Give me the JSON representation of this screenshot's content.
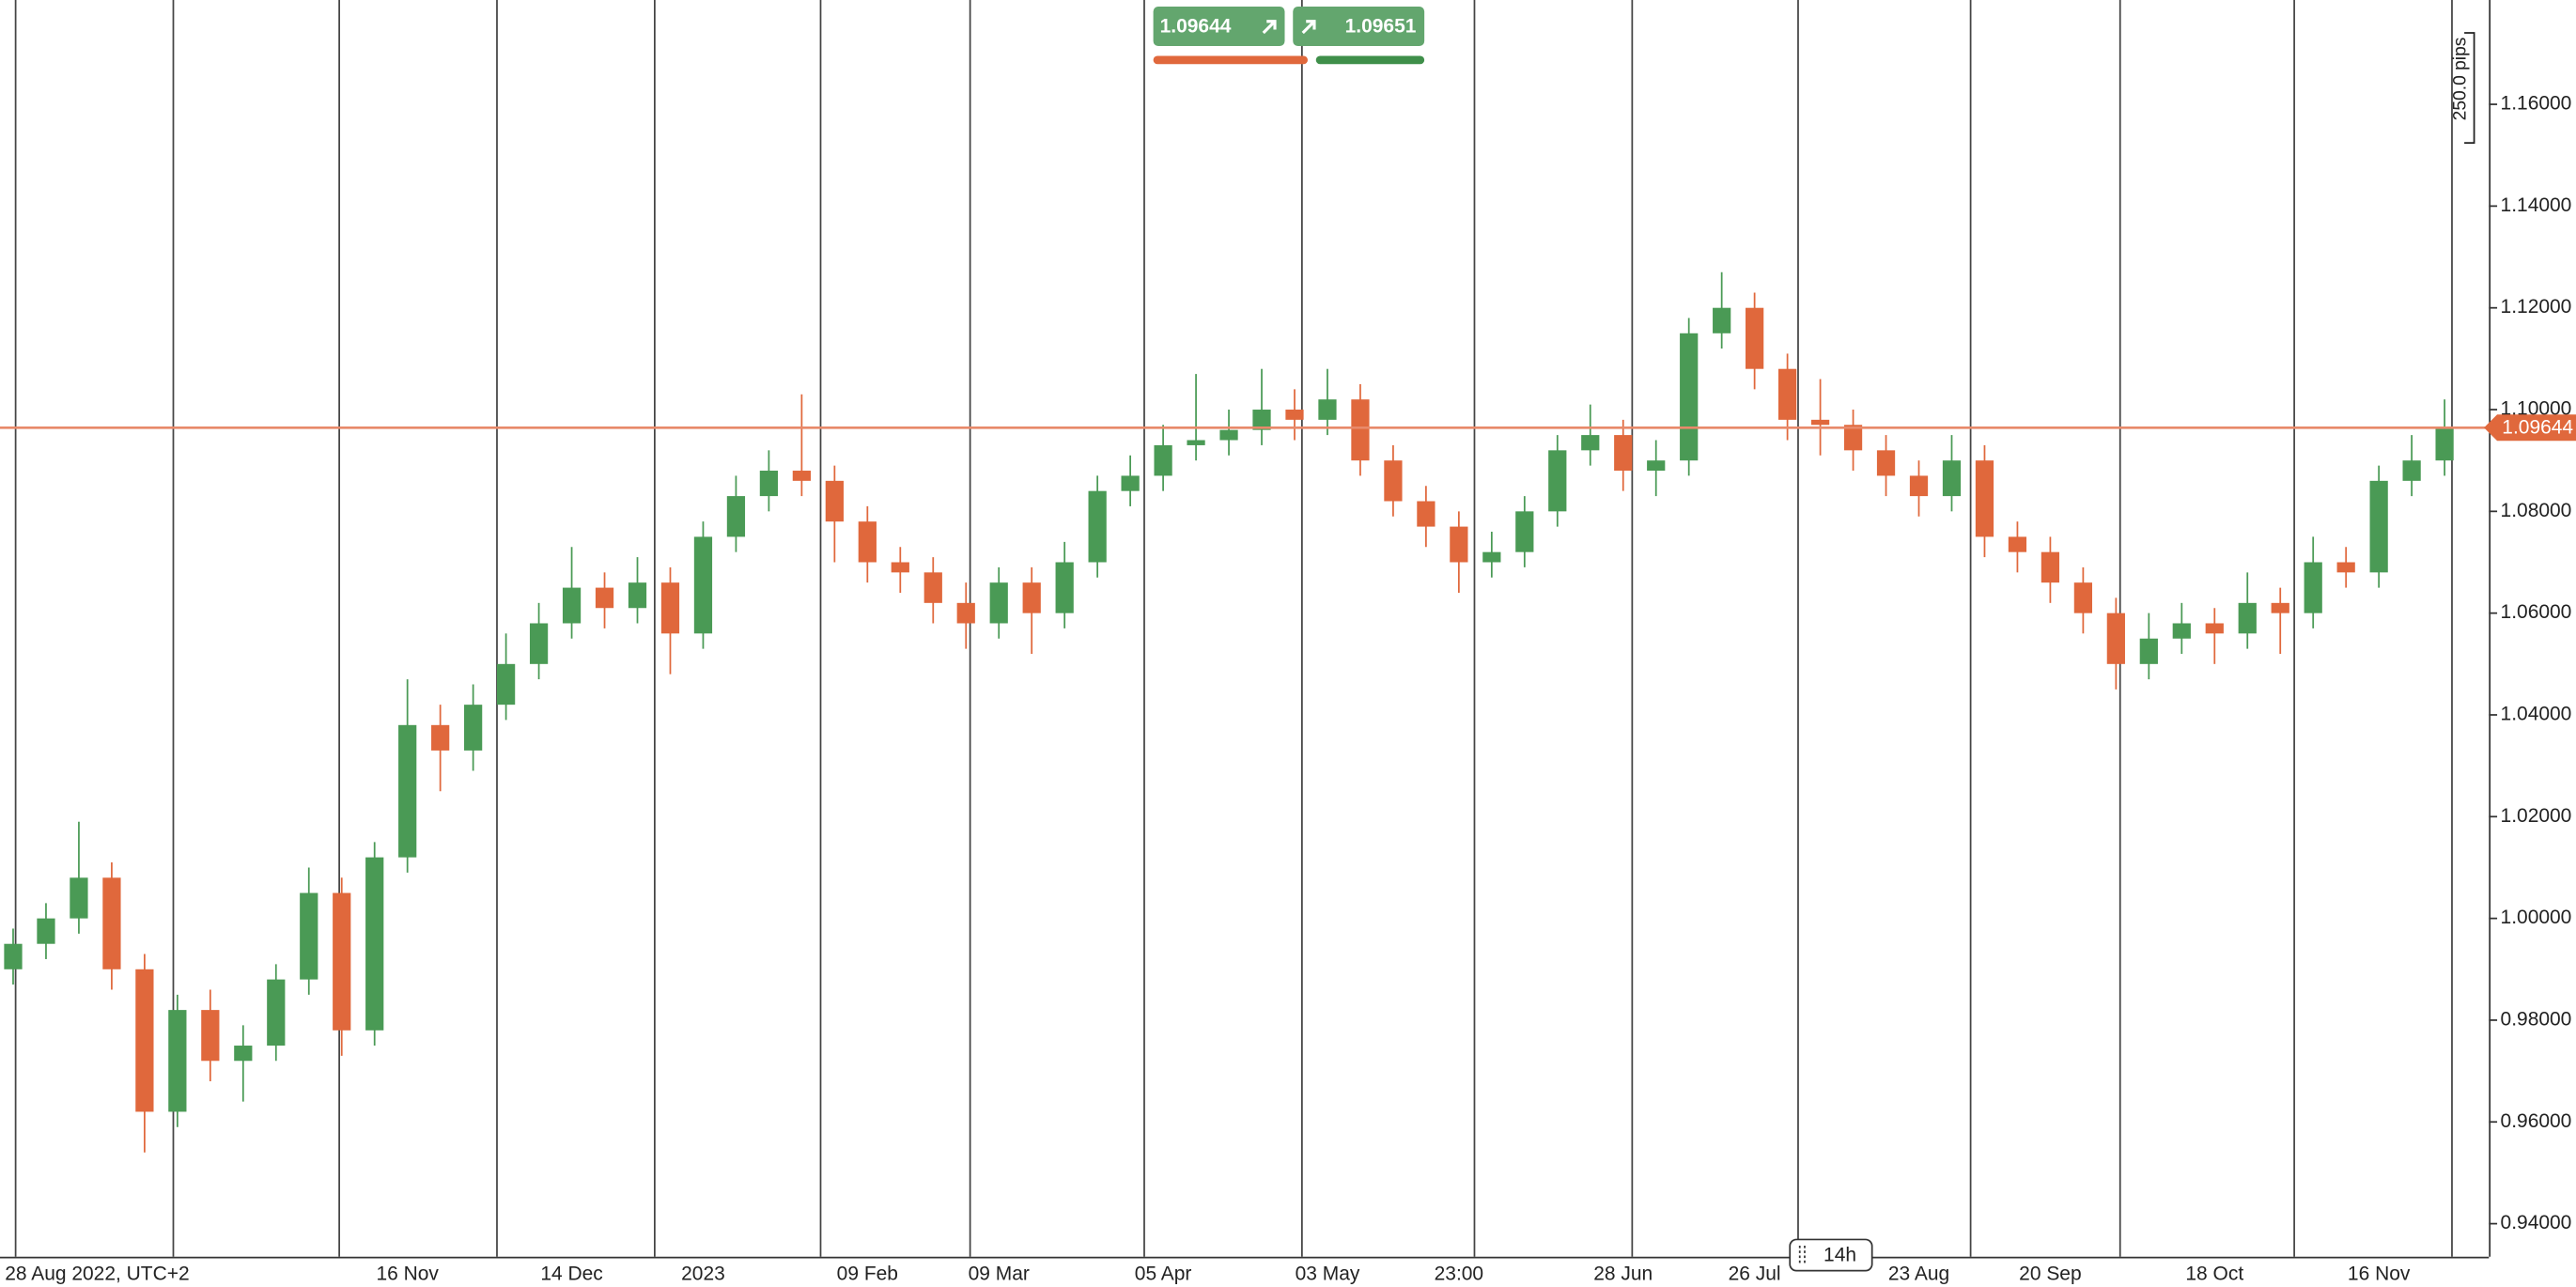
{
  "chart_data": {
    "type": "candlestick",
    "categories": [
      null,
      null,
      "28 Aug 2022, UTC+2",
      null,
      null,
      null,
      null,
      null,
      null,
      null,
      null,
      null,
      "16 Nov",
      null,
      null,
      null,
      null,
      "14 Dec",
      null,
      null,
      null,
      "2023",
      null,
      null,
      null,
      null,
      "09 Feb",
      null,
      null,
      null,
      "09 Mar",
      null,
      null,
      null,
      null,
      "05 Apr",
      null,
      null,
      null,
      null,
      "03 May",
      null,
      null,
      null,
      "23:00",
      null,
      null,
      null,
      null,
      "28 Jun",
      null,
      null,
      null,
      "26 Jul",
      null,
      null,
      null,
      null,
      "23 Aug",
      null,
      null,
      null,
      "20 Sep",
      null,
      null,
      null,
      null,
      "18 Oct",
      null,
      null,
      null,
      null,
      "16 Nov",
      null,
      null
    ],
    "open": [
      0.99,
      0.995,
      1.0,
      1.008,
      0.99,
      0.962,
      0.982,
      0.972,
      0.975,
      0.988,
      1.005,
      0.978,
      1.012,
      1.038,
      1.033,
      1.042,
      1.05,
      1.058,
      1.065,
      1.061,
      1.066,
      1.056,
      1.075,
      1.083,
      1.088,
      1.086,
      1.078,
      1.07,
      1.068,
      1.062,
      1.058,
      1.066,
      1.06,
      1.07,
      1.084,
      1.087,
      1.093,
      1.094,
      1.096,
      1.1,
      1.098,
      1.102,
      1.09,
      1.082,
      1.077,
      1.07,
      1.072,
      1.08,
      1.092,
      1.095,
      1.088,
      1.09,
      1.115,
      1.12,
      1.108,
      1.098,
      1.097,
      1.092,
      1.087,
      1.083,
      1.09,
      1.075,
      1.072,
      1.066,
      1.06,
      1.05,
      1.055,
      1.058,
      1.056,
      1.062,
      1.06,
      1.07,
      1.068,
      1.086,
      1.09
    ],
    "high": [
      0.998,
      1.003,
      1.019,
      1.011,
      0.993,
      0.985,
      0.986,
      0.979,
      0.991,
      1.01,
      1.008,
      1.015,
      1.047,
      1.042,
      1.046,
      1.056,
      1.062,
      1.073,
      1.068,
      1.071,
      1.069,
      1.078,
      1.087,
      1.092,
      1.103,
      1.089,
      1.081,
      1.073,
      1.071,
      1.066,
      1.069,
      1.069,
      1.074,
      1.087,
      1.091,
      1.097,
      1.107,
      1.1,
      1.108,
      1.104,
      1.108,
      1.105,
      1.093,
      1.085,
      1.08,
      1.076,
      1.083,
      1.095,
      1.101,
      1.098,
      1.094,
      1.118,
      1.127,
      1.123,
      1.111,
      1.106,
      1.1,
      1.095,
      1.09,
      1.095,
      1.093,
      1.078,
      1.075,
      1.069,
      1.063,
      1.06,
      1.062,
      1.061,
      1.068,
      1.065,
      1.075,
      1.073,
      1.089,
      1.095,
      1.102
    ],
    "low": [
      0.987,
      0.992,
      0.997,
      0.986,
      0.954,
      0.959,
      0.968,
      0.964,
      0.972,
      0.985,
      0.973,
      0.975,
      1.009,
      1.025,
      1.029,
      1.039,
      1.047,
      1.055,
      1.057,
      1.058,
      1.048,
      1.053,
      1.072,
      1.08,
      1.083,
      1.07,
      1.066,
      1.064,
      1.058,
      1.053,
      1.055,
      1.052,
      1.057,
      1.067,
      1.081,
      1.084,
      1.09,
      1.091,
      1.093,
      1.094,
      1.095,
      1.087,
      1.079,
      1.073,
      1.064,
      1.067,
      1.069,
      1.077,
      1.089,
      1.084,
      1.083,
      1.087,
      1.112,
      1.104,
      1.094,
      1.091,
      1.088,
      1.083,
      1.079,
      1.08,
      1.071,
      1.068,
      1.062,
      1.056,
      1.045,
      1.047,
      1.052,
      1.05,
      1.053,
      1.052,
      1.057,
      1.065,
      1.065,
      1.083,
      1.087
    ],
    "close": [
      0.995,
      1.0,
      1.008,
      0.99,
      0.962,
      0.982,
      0.972,
      0.975,
      0.988,
      1.005,
      0.978,
      1.012,
      1.038,
      1.033,
      1.042,
      1.05,
      1.058,
      1.065,
      1.061,
      1.066,
      1.056,
      1.075,
      1.083,
      1.088,
      1.086,
      1.078,
      1.07,
      1.068,
      1.062,
      1.058,
      1.066,
      1.06,
      1.07,
      1.084,
      1.087,
      1.093,
      1.094,
      1.096,
      1.1,
      1.098,
      1.102,
      1.09,
      1.082,
      1.077,
      1.07,
      1.072,
      1.08,
      1.092,
      1.095,
      1.088,
      1.09,
      1.115,
      1.12,
      1.108,
      1.098,
      1.097,
      1.092,
      1.087,
      1.083,
      1.09,
      1.075,
      1.072,
      1.066,
      1.06,
      1.05,
      1.055,
      1.058,
      1.056,
      1.062,
      1.06,
      1.07,
      1.068,
      1.086,
      1.09,
      1.09644
    ],
    "up_color": "#4a9a55",
    "down_color": "#e0683c",
    "current_price": 1.09644,
    "current_price_color": "#e8896a",
    "ylim": [
      0.9335,
      1.1805
    ],
    "yticks": [
      {
        "value": 0.94,
        "label": "0.94000"
      },
      {
        "value": 0.96,
        "label": "0.96000"
      },
      {
        "value": 0.98,
        "label": "0.98000"
      },
      {
        "value": 1.0,
        "label": "1.00000"
      },
      {
        "value": 1.02,
        "label": "1.02000"
      },
      {
        "value": 1.04,
        "label": "1.04000"
      },
      {
        "value": 1.06,
        "label": "1.06000"
      },
      {
        "value": 1.08,
        "label": "1.08000"
      },
      {
        "value": 1.1,
        "label": "1.10000"
      },
      {
        "value": 1.12,
        "label": "1.12000"
      },
      {
        "value": 1.14,
        "label": "1.14000"
      },
      {
        "value": 1.16,
        "label": "1.16000"
      }
    ]
  },
  "toolbar": {
    "sell_price": 1.09644,
    "buy_price": 1.09651,
    "ruler_label": "250.0 pips",
    "timeframe": "14h"
  }
}
